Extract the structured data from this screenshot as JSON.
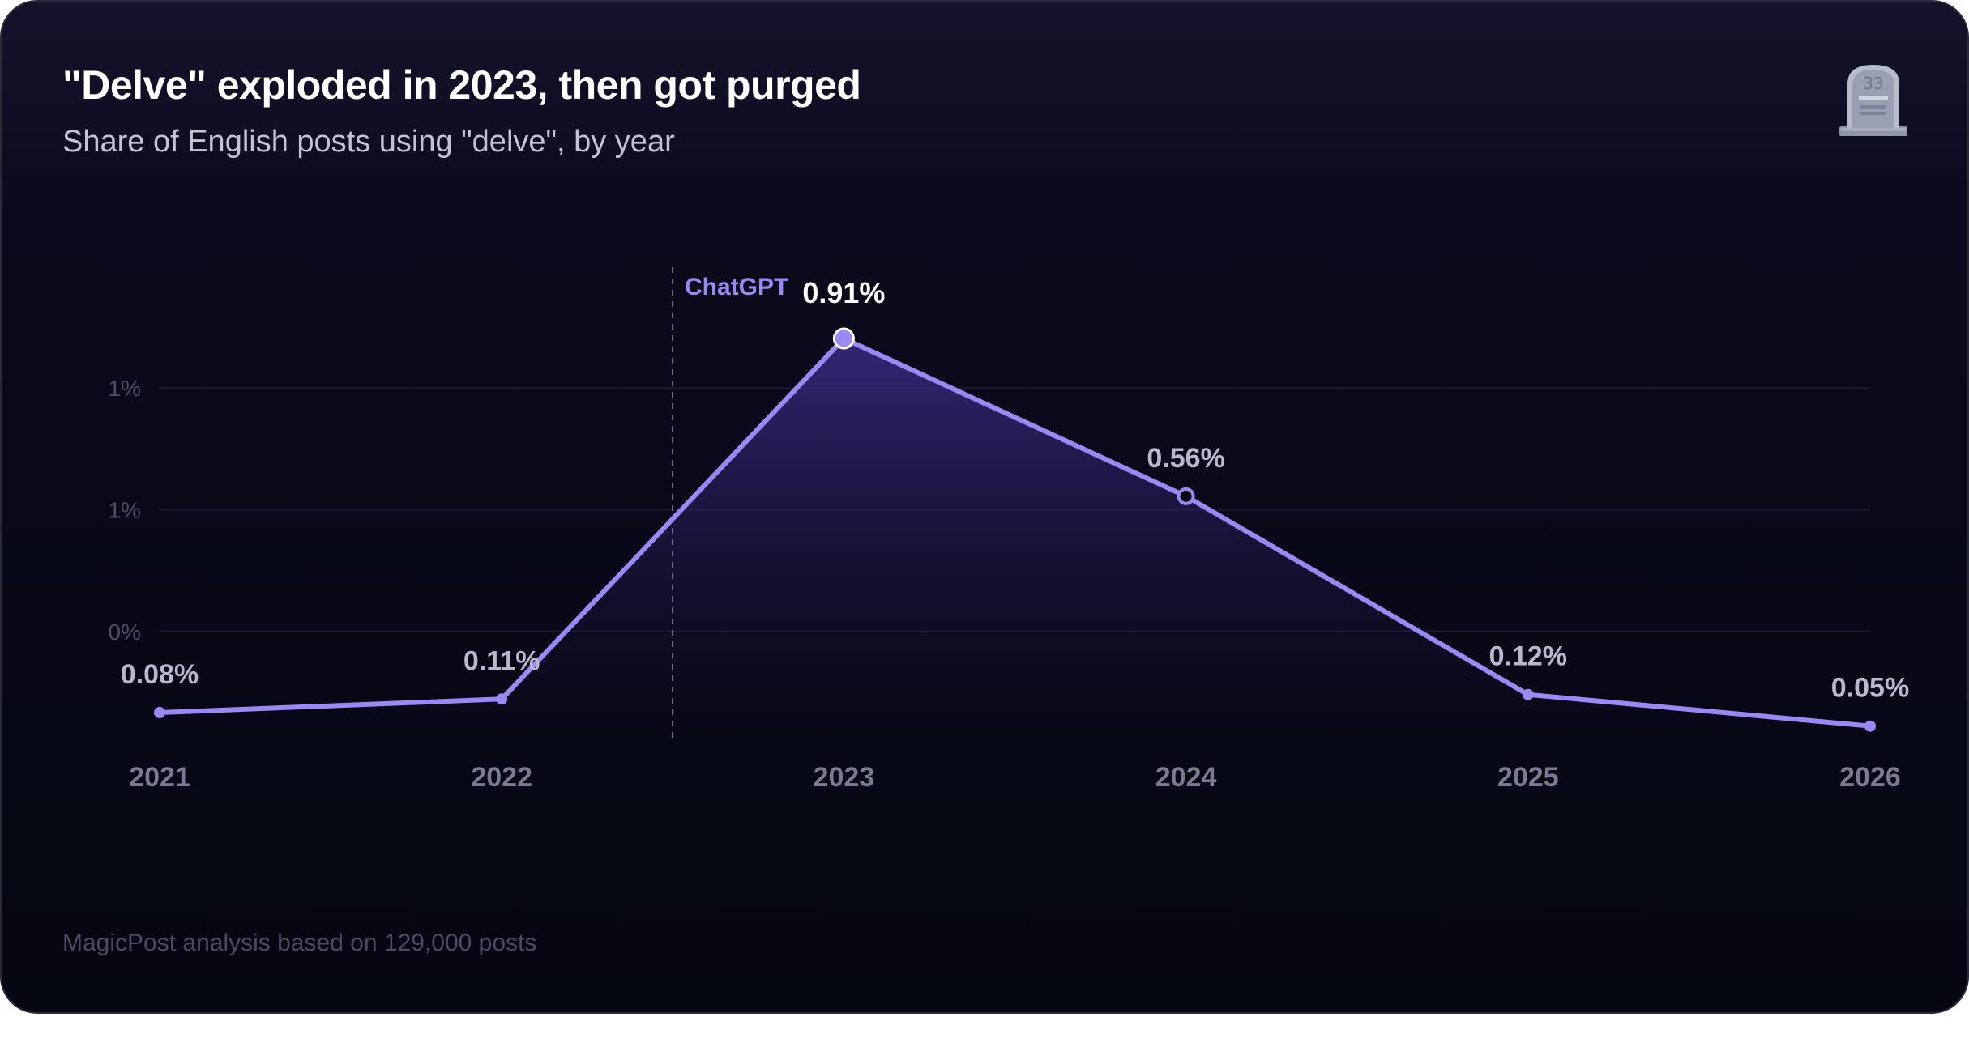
{
  "title": "\"Delve\" exploded in 2023, then got purged",
  "subtitle": "Share of English posts using \"delve\", by year",
  "footer": "MagicPost analysis based on 129,000 posts",
  "icon": "tombstone-icon",
  "colors": {
    "background": "#0b0a1c",
    "line": "#9b88f5",
    "grid": "#1c1b30",
    "area": "#3a2d86"
  },
  "chart_data": {
    "type": "line",
    "title": "\"Delve\" exploded in 2023, then got purged",
    "subtitle": "Share of English posts using \"delve\", by year",
    "categories": [
      "2021",
      "2022",
      "2023",
      "2024",
      "2025",
      "2026"
    ],
    "values": [
      0.08,
      0.11,
      0.91,
      0.56,
      0.12,
      0.05
    ],
    "value_labels": [
      "0.08%",
      "0.11%",
      "0.91%",
      "0.56%",
      "0.12%",
      "0.05%"
    ],
    "y_ticks": [
      {
        "value": 0.8,
        "label": "1%"
      },
      {
        "value": 0.53,
        "label": "1%"
      },
      {
        "value": 0.26,
        "label": "0%"
      }
    ],
    "annotation": {
      "label": "ChatGPT",
      "position_between": [
        "2022",
        "2023"
      ]
    },
    "grid": true,
    "area_fill": true
  }
}
